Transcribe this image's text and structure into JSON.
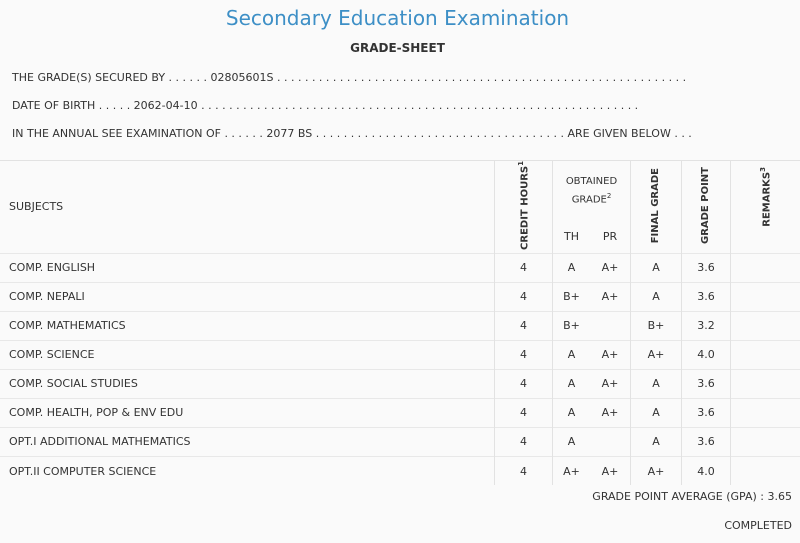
{
  "header": {
    "title": "Secondary Education Examination",
    "subtitle": "GRADE-SHEET"
  },
  "info": {
    "secured_by": "THE GRADE(S) SECURED BY . . . . . . 02805601S . . . . . . . . . . . . . . . . . . . . . . . . . . . . . . . . . . . . . . . . . . . . . . . . . . . . . . . . . . .",
    "dob": "DATE OF BIRTH . . . . . 2062-04-10 . . . . . . . . . . . . . . . . . . . . . . . . . . . . . . . . . . . . . . . . . . . . . . . . . . . . . . . . . . . . . . .",
    "exam": "IN THE ANNUAL SEE EXAMINATION OF . . . . . . 2077 BS . . . . . . . . . . . . . . . . . . . . . . . . . . . . . . . . . . . . ARE GIVEN BELOW . . ."
  },
  "table": {
    "col_subjects": "SUBJECTS",
    "col_credit": "CREDIT HOURS",
    "col_credit_sup": "1",
    "col_obtained": "OBTAINED GRADE",
    "col_obtained_sup": "2",
    "col_th": "TH",
    "col_pr": "PR",
    "col_final": "FINAL GRADE",
    "col_point": "GRADE POINT",
    "col_remarks": "REMARKS",
    "col_remarks_sup": "3",
    "rows": [
      {
        "subject": "COMP. ENGLISH",
        "credit": "4",
        "th": "A",
        "pr": "A+",
        "final": "A",
        "point": "3.6",
        "remarks": ""
      },
      {
        "subject": "COMP. NEPALI",
        "credit": "4",
        "th": "B+",
        "pr": "A+",
        "final": "A",
        "point": "3.6",
        "remarks": ""
      },
      {
        "subject": "COMP. MATHEMATICS",
        "credit": "4",
        "th": "B+",
        "pr": "",
        "final": "B+",
        "point": "3.2",
        "remarks": ""
      },
      {
        "subject": "COMP. SCIENCE",
        "credit": "4",
        "th": "A",
        "pr": "A+",
        "final": "A+",
        "point": "4.0",
        "remarks": ""
      },
      {
        "subject": "COMP. SOCIAL STUDIES",
        "credit": "4",
        "th": "A",
        "pr": "A+",
        "final": "A",
        "point": "3.6",
        "remarks": ""
      },
      {
        "subject": "COMP. HEALTH, POP & ENV EDU",
        "credit": "4",
        "th": "A",
        "pr": "A+",
        "final": "A",
        "point": "3.6",
        "remarks": ""
      },
      {
        "subject": "OPT.I ADDITIONAL MATHEMATICS",
        "credit": "4",
        "th": "A",
        "pr": "",
        "final": "A",
        "point": "3.6",
        "remarks": ""
      },
      {
        "subject": "OPT.II COMPUTER SCIENCE",
        "credit": "4",
        "th": "A+",
        "pr": "A+",
        "final": "A+",
        "point": "4.0",
        "remarks": ""
      }
    ]
  },
  "footer": {
    "gpa": "GRADE POINT AVERAGE (GPA) : 3.65",
    "status": "COMPLETED"
  },
  "colors": {
    "title": "#3d8fc6",
    "background": "#fafafa"
  }
}
